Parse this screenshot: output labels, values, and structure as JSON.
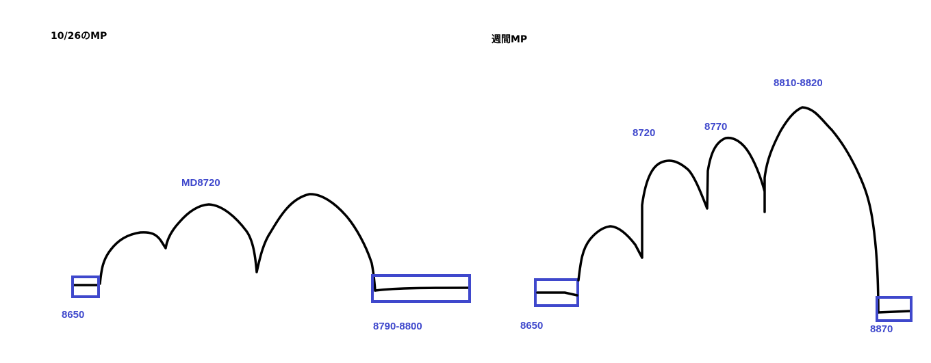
{
  "left_panel": {
    "title": "10/26のMP",
    "labels": {
      "low": "8650",
      "peak": "MD8720",
      "high": "8790-8800"
    }
  },
  "right_panel": {
    "title": "週間MP",
    "labels": {
      "low": "8650",
      "peak1": "8720",
      "peak2": "8770",
      "peak3": "8810-8820",
      "high": "8870"
    }
  },
  "colors": {
    "annotation": "#3f48cc",
    "curve": "#000000"
  }
}
